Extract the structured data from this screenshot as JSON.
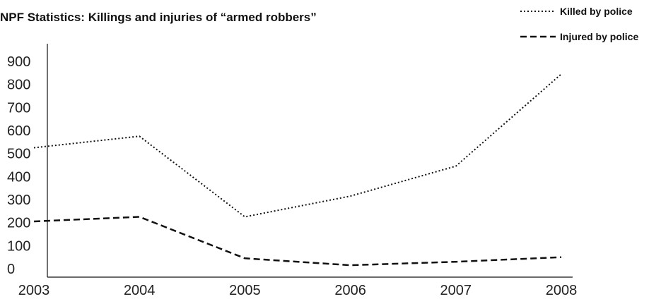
{
  "chart_data": {
    "type": "line",
    "title": "NPF Statistics: Killings and injuries of “armed robbers”",
    "xlabel": "",
    "ylabel": "",
    "x": [
      "2003",
      "2004",
      "2005",
      "2006",
      "2007",
      "2008"
    ],
    "ylim": [
      0,
      900
    ],
    "yticks": [
      0,
      100,
      200,
      300,
      400,
      500,
      600,
      700,
      800,
      900
    ],
    "grid": false,
    "legend_position": "top-right",
    "series": [
      {
        "name": "Killed by police",
        "style": "dotted",
        "color": "#111111",
        "values": [
          525,
          575,
          225,
          315,
          445,
          845
        ]
      },
      {
        "name": "Injured by police",
        "style": "dashed",
        "color": "#111111",
        "values": [
          205,
          225,
          45,
          15,
          30,
          50
        ]
      }
    ]
  }
}
